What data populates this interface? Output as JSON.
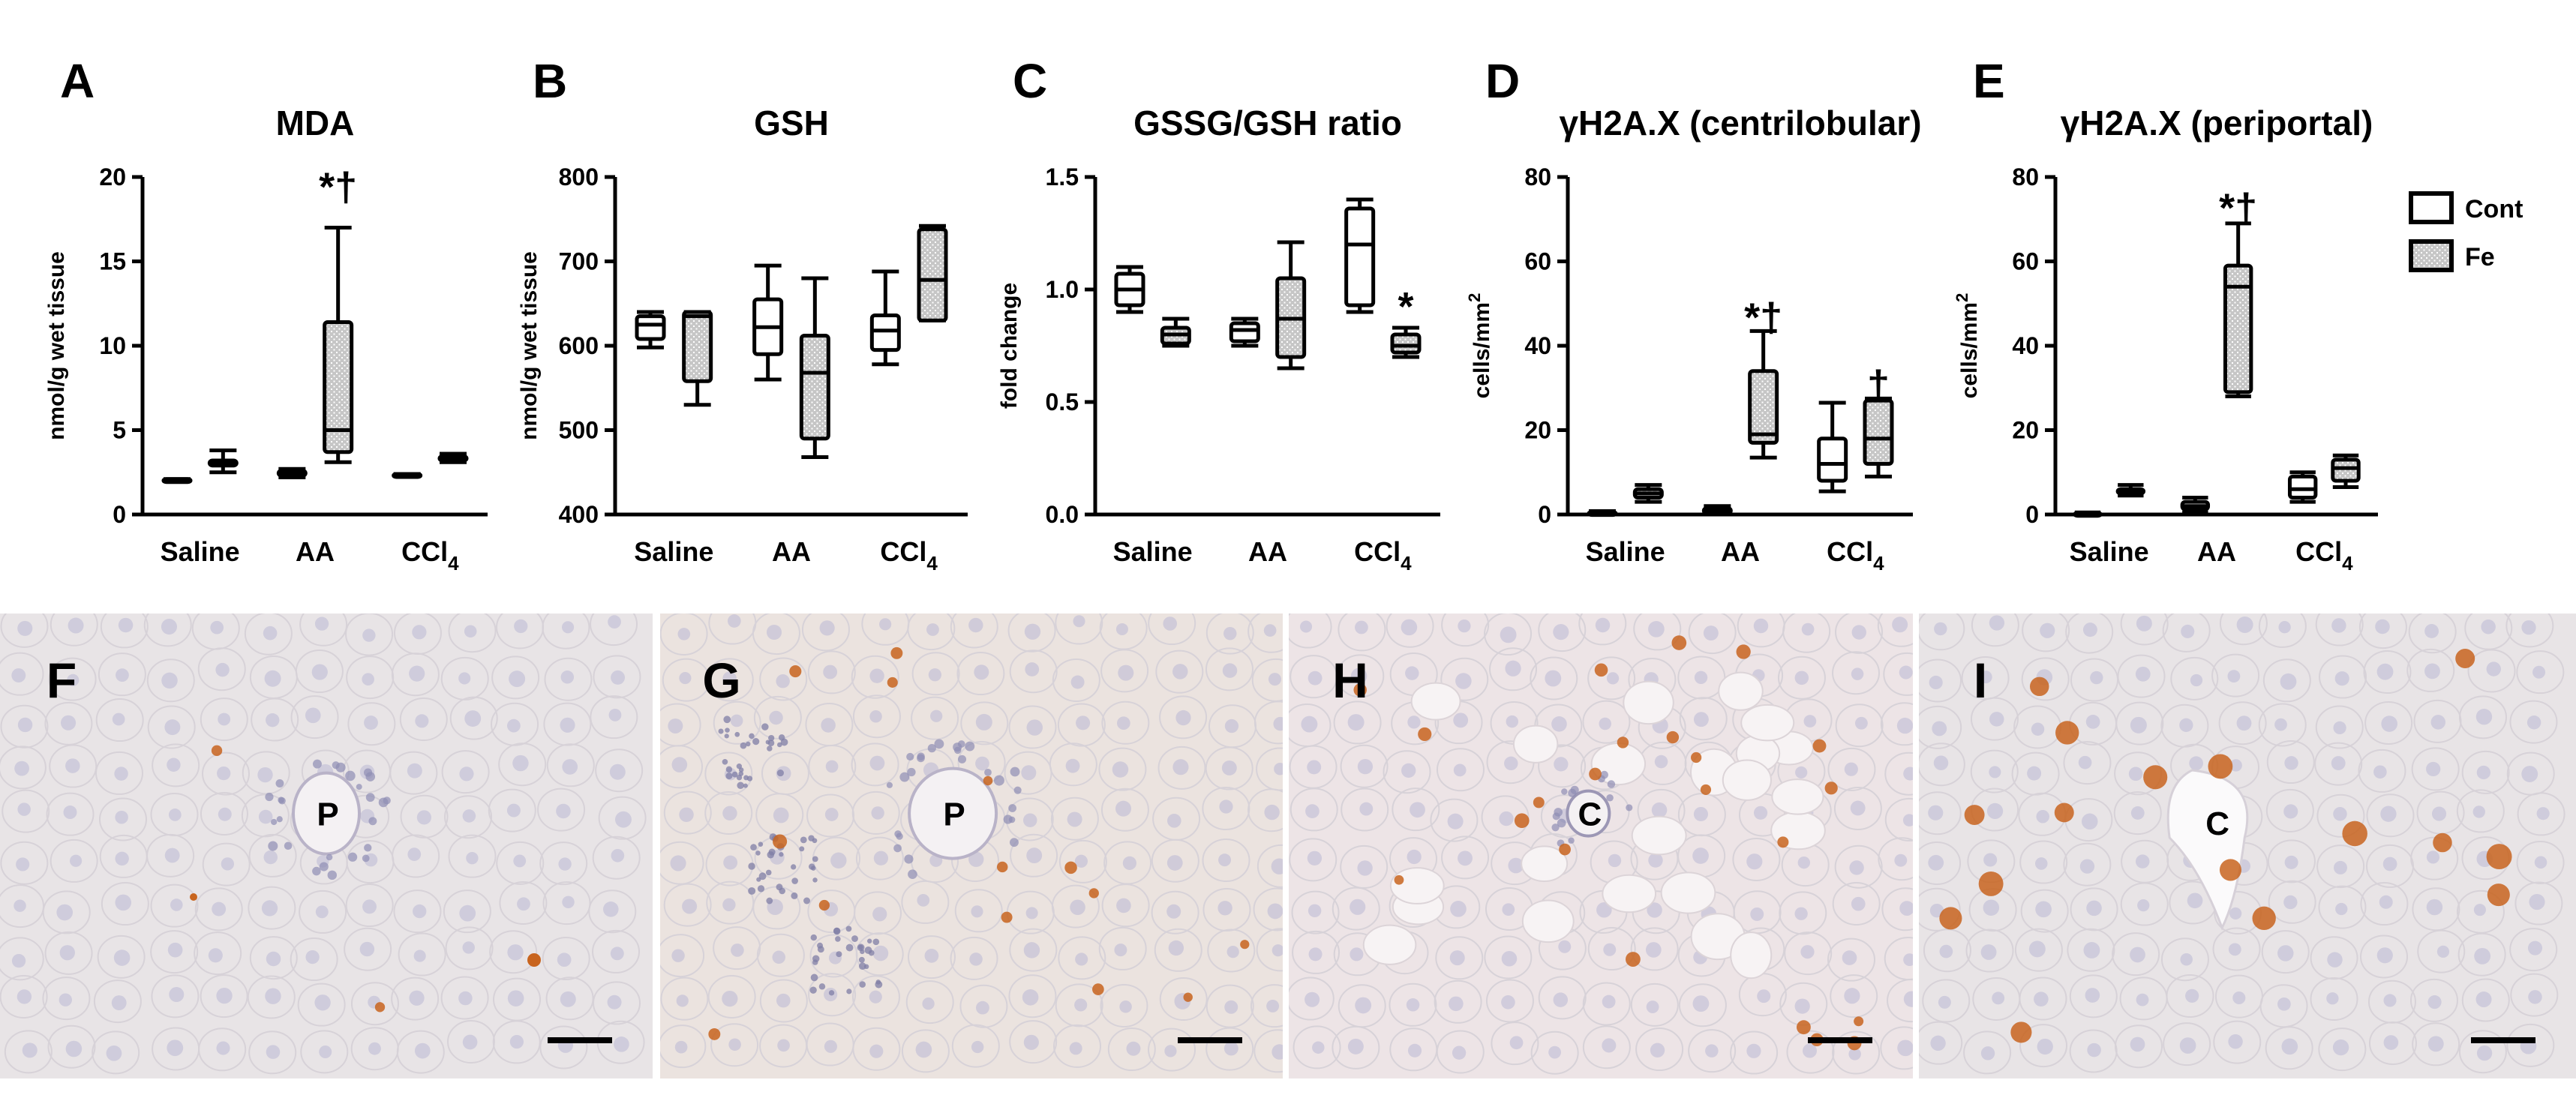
{
  "legend": {
    "items": [
      {
        "label": "Cont",
        "style": "open"
      },
      {
        "label": "Fe",
        "style": "stippled"
      }
    ]
  },
  "colors": {
    "ink": "#000000",
    "fe_fill": "#bdbdbd",
    "tissue": "#e7e2e3",
    "nucleus": "#b9b8d4",
    "stain": "#c8641e"
  },
  "chart_data": [
    {
      "panel": "A",
      "type": "box",
      "title": "MDA",
      "ylabel": "nmol/g wet tissue",
      "ylim": [
        0,
        20
      ],
      "yticks": [
        0,
        5,
        10,
        15,
        20
      ],
      "categories": [
        "Saline",
        "AA",
        "CCl4"
      ],
      "series": [
        {
          "name": "Cont",
          "boxes": [
            {
              "min": 2.0,
              "q1": 2.0,
              "median": 2.05,
              "q3": 2.1,
              "max": 2.1
            },
            {
              "min": 2.2,
              "q1": 2.3,
              "median": 2.45,
              "q3": 2.6,
              "max": 2.7
            },
            {
              "min": 2.3,
              "q1": 2.3,
              "median": 2.35,
              "q3": 2.4,
              "max": 2.4
            }
          ]
        },
        {
          "name": "Fe",
          "boxes": [
            {
              "min": 2.5,
              "q1": 2.9,
              "median": 3.0,
              "q3": 3.2,
              "max": 3.8
            },
            {
              "min": 3.1,
              "q1": 3.7,
              "median": 5.0,
              "q3": 11.4,
              "max": 17.0
            },
            {
              "min": 3.1,
              "q1": 3.2,
              "median": 3.3,
              "q3": 3.45,
              "max": 3.6
            }
          ]
        }
      ],
      "annotations": [
        {
          "category": "AA",
          "series": "Fe",
          "text": "*†",
          "at": 19.5
        }
      ]
    },
    {
      "panel": "B",
      "type": "box",
      "title": "GSH",
      "ylabel": "nmol/g wet tissue",
      "ylim": [
        400,
        800
      ],
      "yticks": [
        400,
        500,
        600,
        700,
        800
      ],
      "categories": [
        "Saline",
        "AA",
        "CCl4"
      ],
      "series": [
        {
          "name": "Cont",
          "boxes": [
            {
              "min": 598,
              "q1": 608,
              "median": 625,
              "q3": 635,
              "max": 640
            },
            {
              "min": 560,
              "q1": 590,
              "median": 622,
              "q3": 655,
              "max": 695
            },
            {
              "min": 578,
              "q1": 595,
              "median": 618,
              "q3": 636,
              "max": 688
            }
          ]
        },
        {
          "name": "Fe",
          "boxes": [
            {
              "min": 530,
              "q1": 558,
              "median": 635,
              "q3": 640,
              "max": 640
            },
            {
              "min": 468,
              "q1": 490,
              "median": 568,
              "q3": 612,
              "max": 680
            },
            {
              "min": 630,
              "q1": 630,
              "median": 678,
              "q3": 738,
              "max": 742
            }
          ]
        }
      ]
    },
    {
      "panel": "C",
      "type": "box",
      "title": "GSSG/GSH ratio",
      "ylabel": "fold change",
      "ylim": [
        0,
        1.5
      ],
      "yticks": [
        0.0,
        0.5,
        1.0,
        1.5
      ],
      "categories": [
        "Saline",
        "AA",
        "CCl4"
      ],
      "series": [
        {
          "name": "Cont",
          "boxes": [
            {
              "min": 0.9,
              "q1": 0.93,
              "median": 1.0,
              "q3": 1.07,
              "max": 1.1
            },
            {
              "min": 0.75,
              "q1": 0.77,
              "median": 0.82,
              "q3": 0.85,
              "max": 0.87
            },
            {
              "min": 0.9,
              "q1": 0.93,
              "median": 1.2,
              "q3": 1.36,
              "max": 1.4
            }
          ]
        },
        {
          "name": "Fe",
          "boxes": [
            {
              "min": 0.75,
              "q1": 0.76,
              "median": 0.8,
              "q3": 0.83,
              "max": 0.87
            },
            {
              "min": 0.65,
              "q1": 0.7,
              "median": 0.87,
              "q3": 1.05,
              "max": 1.21
            },
            {
              "min": 0.7,
              "q1": 0.72,
              "median": 0.75,
              "q3": 0.8,
              "max": 0.83
            }
          ]
        }
      ],
      "annotations": [
        {
          "category": "CCl4",
          "series": "Fe",
          "text": "*",
          "at": 0.93
        }
      ]
    },
    {
      "panel": "D",
      "type": "box",
      "title": "γH2A.X (centrilobular)",
      "ylabel": "cells/mm2",
      "ylim": [
        0,
        80
      ],
      "yticks": [
        0,
        20,
        40,
        60,
        80
      ],
      "categories": [
        "Saline",
        "AA",
        "CCl4"
      ],
      "series": [
        {
          "name": "Cont",
          "boxes": [
            {
              "min": 0,
              "q1": 0,
              "median": 0.3,
              "q3": 0.6,
              "max": 0.8
            },
            {
              "min": 0,
              "q1": 0.3,
              "median": 0.8,
              "q3": 1.5,
              "max": 2.0
            },
            {
              "min": 5.5,
              "q1": 8,
              "median": 12,
              "q3": 18,
              "max": 26.5
            }
          ]
        },
        {
          "name": "Fe",
          "boxes": [
            {
              "min": 3,
              "q1": 4,
              "median": 5,
              "q3": 6,
              "max": 7
            },
            {
              "min": 13.5,
              "q1": 17,
              "median": 19,
              "q3": 34,
              "max": 43.5
            },
            {
              "min": 9,
              "q1": 12,
              "median": 18,
              "q3": 27,
              "max": 27.5
            }
          ]
        }
      ],
      "annotations": [
        {
          "category": "AA",
          "series": "Fe",
          "text": "*†",
          "at": 47
        },
        {
          "category": "CCl4",
          "series": "Fe",
          "text": "†",
          "at": 31
        }
      ]
    },
    {
      "panel": "E",
      "type": "box",
      "title": "γH2A.X (periportal)",
      "ylabel": "cells/mm2",
      "ylim": [
        0,
        80
      ],
      "yticks": [
        0,
        20,
        40,
        60,
        80
      ],
      "categories": [
        "Saline",
        "AA",
        "CCl4"
      ],
      "series": [
        {
          "name": "Cont",
          "boxes": [
            {
              "min": 0,
              "q1": 0,
              "median": 0.2,
              "q3": 0.4,
              "max": 0.5
            },
            {
              "min": 0.5,
              "q1": 1.2,
              "median": 2.0,
              "q3": 3.0,
              "max": 4.0
            },
            {
              "min": 3,
              "q1": 4,
              "median": 6,
              "q3": 9,
              "max": 10
            }
          ]
        },
        {
          "name": "Fe",
          "boxes": [
            {
              "min": 4.5,
              "q1": 5,
              "median": 5.5,
              "q3": 6,
              "max": 7
            },
            {
              "min": 28,
              "q1": 29,
              "median": 54,
              "q3": 59,
              "max": 69
            },
            {
              "min": 6.5,
              "q1": 8,
              "median": 11,
              "q3": 13,
              "max": 14
            }
          ]
        }
      ],
      "annotations": [
        {
          "category": "AA",
          "series": "Fe",
          "text": "*†",
          "at": 73
        }
      ]
    }
  ],
  "micrographs": [
    {
      "panel": "F",
      "label": "P",
      "vessel": "portal"
    },
    {
      "panel": "G",
      "label": "P",
      "vessel": "portal"
    },
    {
      "panel": "H",
      "label": "C",
      "vessel": "central"
    },
    {
      "panel": "I",
      "label": "C",
      "vessel": "central"
    }
  ]
}
